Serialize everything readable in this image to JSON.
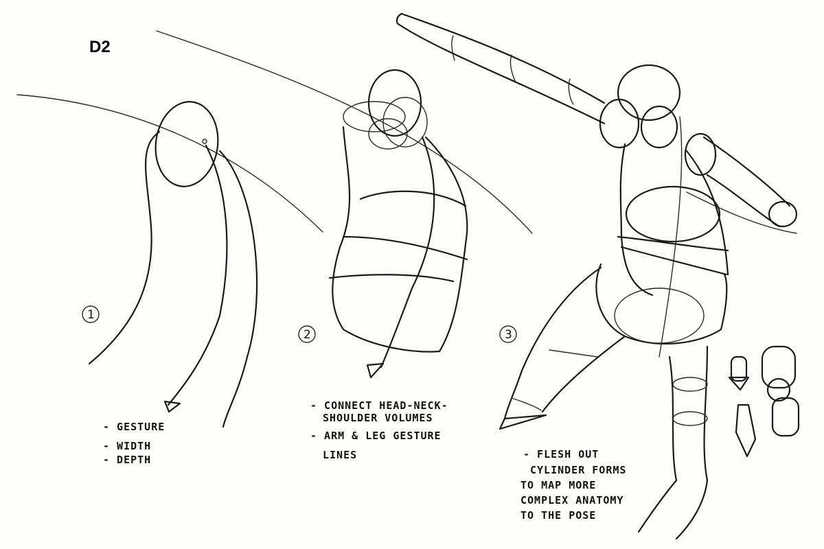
{
  "sheet": {
    "id_label": "D2"
  },
  "steps": [
    {
      "number": "1",
      "notes": [
        "- GESTURE",
        "- WIDTH",
        "- DEPTH"
      ]
    },
    {
      "number": "2",
      "notes": [
        "- CONNECT HEAD-NECK-",
        "SHOULDER VOLUMES",
        "- ARM & LEG GESTURE",
        "LINES"
      ]
    },
    {
      "number": "3",
      "notes": [
        "- FLESH OUT",
        "CYLINDER FORMS",
        "TO MAP MORE",
        "COMPLEX ANATOMY",
        "TO THE POSE"
      ]
    }
  ],
  "colors": {
    "paper": "#fdfdfc",
    "ink": "#1a1a1a"
  }
}
